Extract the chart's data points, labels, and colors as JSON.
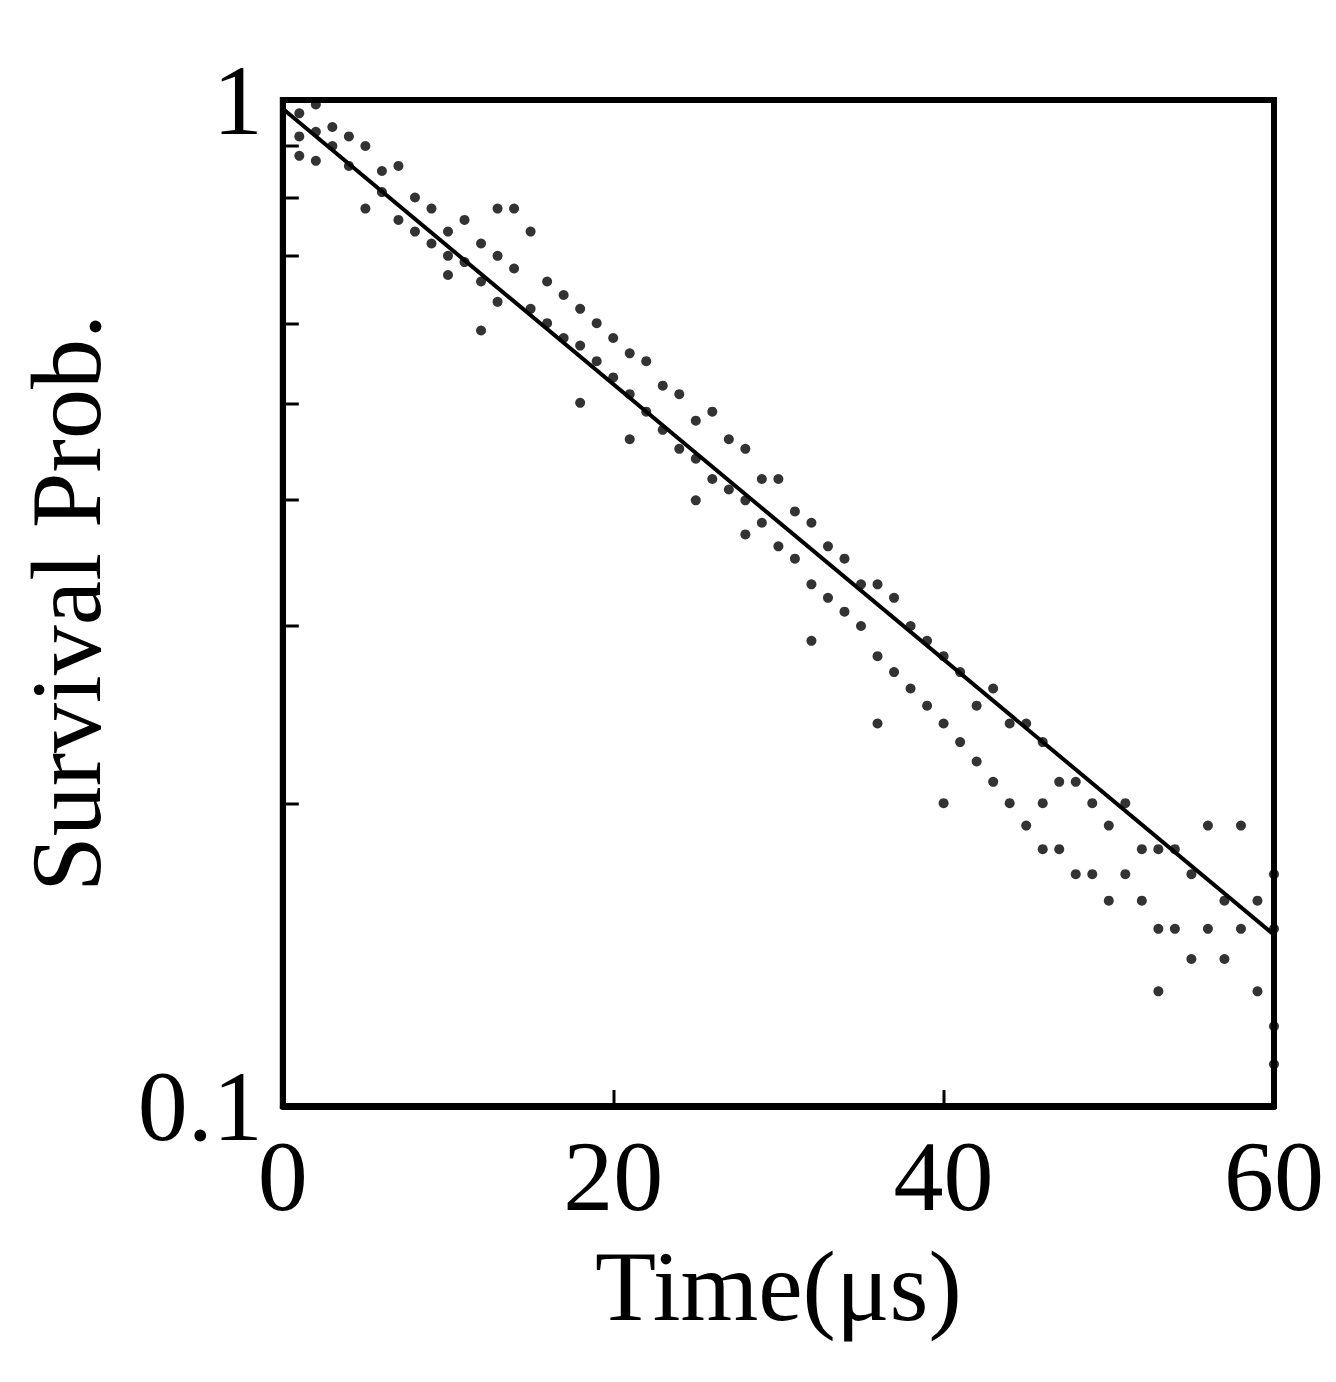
{
  "chart_data": {
    "type": "scatter",
    "xlabel": "Time(μs)",
    "ylabel": "Survival Prob.",
    "log": "y",
    "grid": false,
    "marker": "circle",
    "xlim": [
      0,
      60
    ],
    "xticks": [
      0,
      20,
      40,
      60
    ],
    "ylim": [
      0.1,
      1
    ],
    "yticks": [
      0.1,
      {
        "value": 0.2,
        "label": null
      },
      {
        "value": 0.3,
        "label": null
      },
      {
        "value": 0.4,
        "label": null
      },
      {
        "value": 0.5,
        "label": null
      },
      {
        "value": 0.6,
        "label": null
      },
      {
        "value": 0.7,
        "label": null
      },
      {
        "value": 0.8,
        "label": null
      },
      {
        "value": 0.9,
        "label": null
      },
      1
    ],
    "series": [
      {
        "color": "#000000",
        "x": [
          1,
          1,
          1,
          2,
          2,
          2,
          3,
          3,
          4,
          4,
          5,
          5,
          6,
          6,
          7,
          7,
          8,
          8,
          9,
          9,
          10,
          10,
          10,
          11,
          11,
          12,
          12,
          12,
          13,
          13,
          13,
          14,
          14,
          15,
          15,
          16,
          16,
          17,
          17,
          18,
          18,
          18,
          19,
          19,
          20,
          20,
          21,
          21,
          21,
          22,
          22,
          23,
          23,
          24,
          24,
          25,
          25,
          25,
          26,
          26,
          27,
          27,
          28,
          28,
          28,
          29,
          29,
          30,
          30,
          31,
          31,
          32,
          32,
          32,
          33,
          33,
          34,
          34,
          35,
          35,
          36,
          36,
          36,
          37,
          37,
          38,
          38,
          39,
          39,
          40,
          40,
          40,
          41,
          41,
          42,
          42,
          43,
          43,
          44,
          44,
          45,
          45,
          46,
          46,
          46,
          47,
          47,
          48,
          48,
          49,
          49,
          50,
          50,
          51,
          51,
          52,
          52,
          53,
          53,
          53,
          54,
          54,
          55,
          55,
          56,
          56,
          57,
          57,
          58,
          58,
          59,
          59,
          60,
          60,
          60,
          60
        ],
        "values": [
          0.97,
          0.92,
          0.88,
          0.99,
          0.93,
          0.87,
          0.94,
          0.9,
          0.92,
          0.86,
          0.9,
          0.78,
          0.85,
          0.81,
          0.86,
          0.76,
          0.8,
          0.74,
          0.78,
          0.72,
          0.74,
          0.7,
          0.67,
          0.76,
          0.69,
          0.72,
          0.66,
          0.59,
          0.78,
          0.7,
          0.63,
          0.78,
          0.68,
          0.74,
          0.62,
          0.66,
          0.6,
          0.64,
          0.58,
          0.62,
          0.57,
          0.5,
          0.6,
          0.55,
          0.58,
          0.53,
          0.56,
          0.51,
          0.46,
          0.55,
          0.49,
          0.52,
          0.47,
          0.51,
          0.45,
          0.48,
          0.44,
          0.4,
          0.49,
          0.42,
          0.46,
          0.41,
          0.45,
          0.4,
          0.37,
          0.42,
          0.38,
          0.42,
          0.36,
          0.39,
          0.35,
          0.38,
          0.33,
          0.29,
          0.36,
          0.32,
          0.35,
          0.31,
          0.33,
          0.3,
          0.33,
          0.28,
          0.24,
          0.32,
          0.27,
          0.3,
          0.26,
          0.29,
          0.25,
          0.28,
          0.24,
          0.2,
          0.27,
          0.23,
          0.25,
          0.22,
          0.26,
          0.21,
          0.24,
          0.2,
          0.24,
          0.19,
          0.23,
          0.2,
          0.18,
          0.21,
          0.18,
          0.21,
          0.17,
          0.2,
          0.17,
          0.19,
          0.16,
          0.2,
          0.17,
          0.18,
          0.16,
          0.18,
          0.15,
          0.13,
          0.18,
          0.15,
          0.17,
          0.14,
          0.19,
          0.15,
          0.16,
          0.14,
          0.19,
          0.15,
          0.16,
          0.13,
          0.17,
          0.15,
          0.12,
          0.11
        ]
      },
      {
        "type": "line",
        "color": "#000000",
        "marker": "none",
        "line_style": "solid",
        "x": [
          0,
          60
        ],
        "values": [
          0.98,
          0.148
        ]
      }
    ]
  }
}
